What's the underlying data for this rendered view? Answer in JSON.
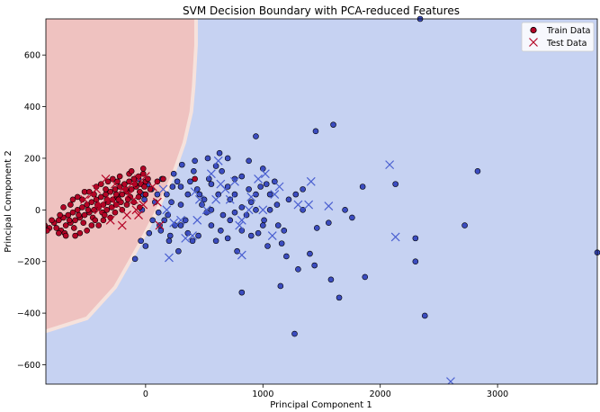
{
  "chart_data": {
    "type": "scatter",
    "title": "SVM Decision Boundary with PCA-reduced Features",
    "xlabel": "Principal Component 1",
    "ylabel": "Principal Component 2",
    "xlim": [
      -850,
      3850
    ],
    "ylim": [
      -675,
      740
    ],
    "x_ticks": [
      0,
      1000,
      2000,
      3000
    ],
    "y_ticks": [
      -600,
      -400,
      -200,
      0,
      200,
      400,
      600
    ],
    "grid": false,
    "legend_position": "top-right",
    "colors": {
      "region_class_0": "#c6d2f2",
      "region_class_1": "#efc2c0",
      "boundary_band": "#f6e2dc",
      "class_0": "#3b4cc0",
      "class_1": "#b40426",
      "test_marker": "#4a5fd0",
      "test_marker_legend": "#b40426"
    },
    "decision_boundary": {
      "description_points": [
        [
          430,
          740
        ],
        [
          430,
          640
        ],
        [
          410,
          480
        ],
        [
          390,
          380
        ],
        [
          330,
          260
        ],
        [
          230,
          130
        ],
        [
          90,
          -10
        ],
        [
          -60,
          -140
        ],
        [
          -260,
          -300
        ],
        [
          -500,
          -420
        ],
        [
          -850,
          -470
        ]
      ]
    },
    "legend": [
      {
        "label": "Train Data",
        "marker": "circle"
      },
      {
        "label": "Test Data",
        "marker": "x"
      }
    ],
    "series": [
      {
        "name": "Train Data",
        "marker": "circle",
        "class_0_points": [
          [
            940,
            285
          ],
          [
            1600,
            330
          ],
          [
            1450,
            305
          ],
          [
            2830,
            150
          ],
          [
            2130,
            100
          ],
          [
            1850,
            90
          ],
          [
            2720,
            -60
          ],
          [
            2300,
            -110
          ],
          [
            2300,
            -200
          ],
          [
            2380,
            -410
          ],
          [
            1270,
            -480
          ],
          [
            820,
            -320
          ],
          [
            1580,
            -270
          ],
          [
            1650,
            -340
          ],
          [
            1870,
            -260
          ],
          [
            1150,
            -295
          ],
          [
            1300,
            -230
          ],
          [
            1440,
            -215
          ],
          [
            1160,
            -130
          ],
          [
            1400,
            -170
          ],
          [
            1760,
            -30
          ],
          [
            1560,
            -50
          ],
          [
            1700,
            0
          ],
          [
            1180,
            -80
          ],
          [
            1130,
            -60
          ],
          [
            1010,
            -40
          ],
          [
            1220,
            40
          ],
          [
            1060,
            60
          ],
          [
            1280,
            60
          ],
          [
            1340,
            80
          ],
          [
            940,
            0
          ],
          [
            880,
            80
          ],
          [
            760,
            120
          ],
          [
            720,
            40
          ],
          [
            630,
            220
          ],
          [
            530,
            200
          ],
          [
            600,
            170
          ],
          [
            420,
            190
          ],
          [
            410,
            150
          ],
          [
            310,
            175
          ],
          [
            270,
            110
          ],
          [
            230,
            90
          ],
          [
            1000,
            160
          ],
          [
            1030,
            100
          ],
          [
            1100,
            110
          ],
          [
            980,
            90
          ],
          [
            900,
            30
          ],
          [
            860,
            -20
          ],
          [
            820,
            -80
          ],
          [
            780,
            -160
          ],
          [
            720,
            -40
          ],
          [
            660,
            -20
          ],
          [
            600,
            -120
          ],
          [
            560,
            -60
          ],
          [
            520,
            -10
          ],
          [
            480,
            20
          ],
          [
            450,
            -100
          ],
          [
            400,
            -120
          ],
          [
            360,
            -90
          ],
          [
            340,
            -40
          ],
          [
            300,
            20
          ],
          [
            280,
            -160
          ],
          [
            250,
            -60
          ],
          [
            210,
            -100
          ],
          [
            190,
            -20
          ],
          [
            160,
            -40
          ],
          [
            130,
            -80
          ],
          [
            110,
            -10
          ],
          [
            80,
            30
          ],
          [
            60,
            -40
          ],
          [
            50,
            80
          ],
          [
            30,
            -90
          ],
          [
            20,
            100
          ],
          [
            0,
            -140
          ],
          [
            -20,
            60
          ],
          [
            -40,
            -120
          ],
          [
            -60,
            120
          ],
          [
            -90,
            -190
          ],
          [
            180,
            60
          ],
          [
            220,
            30
          ],
          [
            300,
            90
          ],
          [
            360,
            60
          ],
          [
            440,
            80
          ],
          [
            500,
            40
          ],
          [
            560,
            100
          ],
          [
            620,
            60
          ],
          [
            700,
            90
          ],
          [
            760,
            -10
          ],
          [
            820,
            10
          ],
          [
            900,
            -100
          ],
          [
            940,
            60
          ],
          [
            1000,
            -60
          ],
          [
            1060,
            0
          ],
          [
            1120,
            20
          ],
          [
            650,
            150
          ],
          [
            820,
            130
          ],
          [
            880,
            190
          ],
          [
            1340,
            0
          ],
          [
            1460,
            -70
          ],
          [
            1200,
            -180
          ],
          [
            1040,
            -140
          ],
          [
            960,
            -90
          ],
          [
            700,
            -110
          ],
          [
            640,
            -80
          ],
          [
            540,
            120
          ],
          [
            460,
            60
          ],
          [
            380,
            110
          ],
          [
            240,
            140
          ],
          [
            140,
            120
          ],
          [
            100,
            60
          ],
          [
            -10,
            40
          ],
          [
            -30,
            0
          ],
          [
            700,
            200
          ],
          [
            560,
            0
          ],
          [
            760,
            60
          ],
          [
            300,
            -60
          ],
          [
            200,
            -120
          ],
          [
            120,
            -60
          ]
        ],
        "class_1_points": [
          [
            -820,
            -70
          ],
          [
            -780,
            -50
          ],
          [
            -740,
            -40
          ],
          [
            -720,
            -80
          ],
          [
            -700,
            -30
          ],
          [
            -680,
            -60
          ],
          [
            -660,
            -20
          ],
          [
            -640,
            -50
          ],
          [
            -620,
            -10
          ],
          [
            -600,
            -40
          ],
          [
            -580,
            0
          ],
          [
            -560,
            -30
          ],
          [
            -540,
            10
          ],
          [
            -520,
            -20
          ],
          [
            -500,
            20
          ],
          [
            -480,
            -10
          ],
          [
            -460,
            30
          ],
          [
            -440,
            0
          ],
          [
            -420,
            40
          ],
          [
            -400,
            10
          ],
          [
            -380,
            50
          ],
          [
            -360,
            20
          ],
          [
            -340,
            60
          ],
          [
            -320,
            30
          ],
          [
            -300,
            70
          ],
          [
            -280,
            40
          ],
          [
            -260,
            80
          ],
          [
            -240,
            50
          ],
          [
            -220,
            90
          ],
          [
            -200,
            60
          ],
          [
            -180,
            100
          ],
          [
            -160,
            70
          ],
          [
            -140,
            110
          ],
          [
            -120,
            80
          ],
          [
            -100,
            120
          ],
          [
            -80,
            90
          ],
          [
            -60,
            130
          ],
          [
            -40,
            100
          ],
          [
            -20,
            140
          ],
          [
            0,
            110
          ],
          [
            20,
            120
          ],
          [
            -800,
            -40
          ],
          [
            -760,
            -70
          ],
          [
            -730,
            -20
          ],
          [
            -690,
            -90
          ],
          [
            -650,
            -40
          ],
          [
            -610,
            -70
          ],
          [
            -570,
            -20
          ],
          [
            -530,
            -50
          ],
          [
            -490,
            0
          ],
          [
            -450,
            -30
          ],
          [
            -410,
            20
          ],
          [
            -370,
            -10
          ],
          [
            -330,
            40
          ],
          [
            -290,
            10
          ],
          [
            -250,
            60
          ],
          [
            -210,
            30
          ],
          [
            -170,
            80
          ],
          [
            -130,
            50
          ],
          [
            -90,
            100
          ],
          [
            -50,
            70
          ],
          [
            -10,
            90
          ],
          [
            -560,
            -90
          ],
          [
            -460,
            -60
          ],
          [
            -360,
            -40
          ],
          [
            -260,
            -10
          ],
          [
            -160,
            20
          ],
          [
            -60,
            50
          ],
          [
            40,
            80
          ],
          [
            -640,
            20
          ],
          [
            -540,
            40
          ],
          [
            -440,
            60
          ],
          [
            -340,
            80
          ],
          [
            -240,
            110
          ],
          [
            -140,
            140
          ],
          [
            -600,
            -100
          ],
          [
            -500,
            -80
          ],
          [
            -400,
            -60
          ],
          [
            -300,
            -30
          ],
          [
            -200,
            0
          ],
          [
            -100,
            30
          ],
          [
            0,
            60
          ],
          [
            -700,
            10
          ],
          [
            -620,
            40
          ],
          [
            -520,
            70
          ],
          [
            -420,
            90
          ],
          [
            -320,
            110
          ],
          [
            -220,
            130
          ],
          [
            -120,
            150
          ],
          [
            -20,
            160
          ],
          [
            -580,
            50
          ],
          [
            -480,
            70
          ],
          [
            -380,
            100
          ],
          [
            -280,
            120
          ],
          [
            -680,
            -100
          ],
          [
            -740,
            -90
          ],
          [
            -860,
            -60
          ],
          [
            -840,
            -80
          ],
          [
            -350,
            -20
          ],
          [
            -250,
            20
          ],
          [
            -150,
            40
          ],
          [
            -50,
            10
          ],
          [
            100,
            110
          ],
          [
            150,
            120
          ],
          [
            420,
            120
          ],
          [
            -430,
            -40
          ],
          [
            -330,
            0
          ],
          [
            -230,
            40
          ]
        ]
      },
      {
        "name": "Test Data",
        "marker": "x",
        "points": [
          [
            2080,
            175
          ],
          [
            2130,
            -105
          ],
          [
            2600,
            -665
          ],
          [
            1410,
            110
          ],
          [
            1390,
            20
          ],
          [
            1300,
            20
          ],
          [
            1560,
            15
          ],
          [
            1080,
            -100
          ],
          [
            1140,
            90
          ],
          [
            1020,
            140
          ],
          [
            960,
            120
          ],
          [
            900,
            50
          ],
          [
            880,
            0
          ],
          [
            820,
            -40
          ],
          [
            800,
            -60
          ],
          [
            820,
            -175
          ],
          [
            720,
            40
          ],
          [
            680,
            80
          ],
          [
            620,
            190
          ],
          [
            600,
            40
          ],
          [
            520,
            0
          ],
          [
            460,
            40
          ],
          [
            440,
            -40
          ],
          [
            400,
            -100
          ],
          [
            340,
            -110
          ],
          [
            300,
            -40
          ],
          [
            240,
            -50
          ],
          [
            180,
            0
          ],
          [
            150,
            80
          ],
          [
            120,
            -60
          ],
          [
            100,
            30
          ],
          [
            200,
            -185
          ],
          [
            420,
            70
          ],
          [
            560,
            140
          ],
          [
            640,
            100
          ],
          [
            760,
            110
          ],
          [
            1000,
            0
          ],
          [
            1100,
            60
          ],
          [
            -20,
            20
          ],
          [
            -60,
            -20
          ],
          [
            -100,
            40
          ],
          [
            -140,
            60
          ],
          [
            -200,
            80
          ],
          [
            -260,
            100
          ],
          [
            -300,
            40
          ],
          [
            -340,
            120
          ],
          [
            -380,
            20
          ],
          [
            -420,
            80
          ],
          [
            -460,
            60
          ],
          [
            -520,
            40
          ],
          [
            -400,
            0
          ],
          [
            -300,
            -40
          ],
          [
            -200,
            -60
          ],
          [
            -120,
            100
          ],
          [
            -60,
            120
          ],
          [
            0,
            130
          ],
          [
            60,
            90
          ],
          [
            -240,
            20
          ],
          [
            -160,
            -20
          ],
          [
            -80,
            0
          ]
        ]
      }
    ],
    "extra_points_off_frame": [
      [
        2340,
        740
      ],
      [
        3880,
        -165
      ]
    ]
  }
}
